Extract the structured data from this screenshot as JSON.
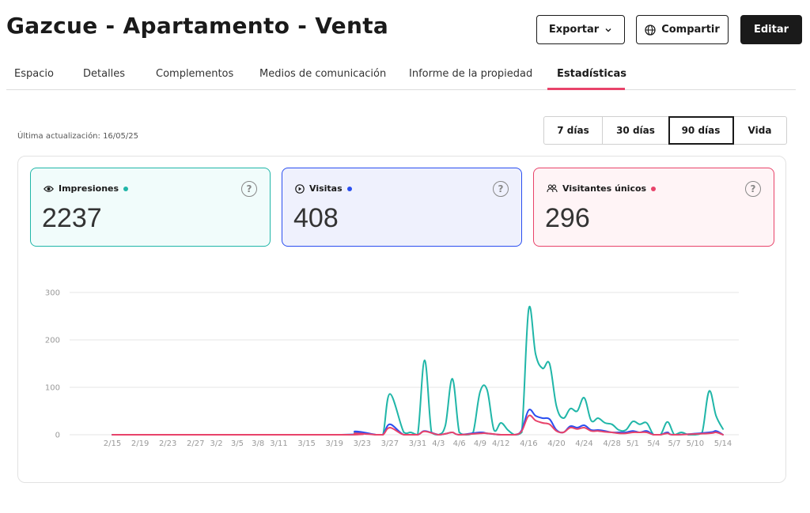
{
  "header": {
    "title": "Gazcue - Apartamento - Venta",
    "menu_icon": "more-vertical-icon",
    "export_label": "Exportar",
    "share_label": "Compartir",
    "edit_label": "Editar"
  },
  "tabs": [
    {
      "label": "Espacio",
      "active": false
    },
    {
      "label": "Detalles",
      "active": false
    },
    {
      "label": "Complementos",
      "active": false
    },
    {
      "label": "Medios de comunicación",
      "active": false
    },
    {
      "label": "Informe de la propiedad",
      "active": false
    },
    {
      "label": "Estadísticas",
      "active": true
    }
  ],
  "last_update": "Última actualización: 16/05/25",
  "range": {
    "options": [
      "7 días",
      "30 días",
      "90 días",
      "Vida"
    ],
    "selected": "90 días"
  },
  "cards": [
    {
      "label": "Impresiones",
      "value": "2237",
      "icon": "eye-icon",
      "color": "#20b6a8"
    },
    {
      "label": "Visitas",
      "value": "408",
      "icon": "play-circle-icon",
      "color": "#2a4ef0"
    },
    {
      "label": "Visitantes únicos",
      "value": "296",
      "icon": "users-icon",
      "color": "#e8436a"
    }
  ],
  "colors": {
    "accent": "#e8436a",
    "impresiones": "#20b6a8",
    "visitas": "#2a4ef0",
    "unicos": "#e8436a"
  },
  "chart_data": {
    "type": "line",
    "ylim": [
      0,
      300
    ],
    "yticks": [
      0,
      100,
      200,
      300
    ],
    "grid": true,
    "legend": "none",
    "x_ticks": [
      "2/15",
      "2/19",
      "2/23",
      "2/27",
      "3/2",
      "3/5",
      "3/8",
      "3/11",
      "3/15",
      "3/19",
      "3/23",
      "3/27",
      "3/31",
      "4/3",
      "4/6",
      "4/9",
      "4/12",
      "4/16",
      "4/20",
      "4/24",
      "4/28",
      "5/1",
      "5/4",
      "5/7",
      "5/10",
      "5/14"
    ],
    "series": [
      {
        "key": "impresiones",
        "color": "#20b6a8",
        "points": [
          [
            "2/15",
            0
          ],
          [
            "3/20",
            0
          ],
          [
            "3/22",
            5
          ],
          [
            "3/25",
            0
          ],
          [
            "3/26",
            0
          ],
          [
            "3/27",
            86
          ],
          [
            "3/29",
            5
          ],
          [
            "3/30",
            5
          ],
          [
            "3/31",
            0
          ],
          [
            "4/1",
            157
          ],
          [
            "4/2",
            5
          ],
          [
            "4/3",
            0
          ],
          [
            "4/4",
            20
          ],
          [
            "4/5",
            118
          ],
          [
            "4/6",
            5
          ],
          [
            "4/7",
            0
          ],
          [
            "4/8",
            5
          ],
          [
            "4/9",
            91
          ],
          [
            "4/10",
            95
          ],
          [
            "4/11",
            10
          ],
          [
            "4/12",
            25
          ],
          [
            "4/13",
            10
          ],
          [
            "4/14",
            0
          ],
          [
            "4/15",
            5
          ],
          [
            "4/16",
            265
          ],
          [
            "4/17",
            170
          ],
          [
            "4/18",
            140
          ],
          [
            "4/19",
            150
          ],
          [
            "4/20",
            60
          ],
          [
            "4/21",
            35
          ],
          [
            "4/22",
            55
          ],
          [
            "4/23",
            50
          ],
          [
            "4/24",
            78
          ],
          [
            "4/25",
            30
          ],
          [
            "4/26",
            35
          ],
          [
            "4/27",
            25
          ],
          [
            "4/28",
            22
          ],
          [
            "4/29",
            10
          ],
          [
            "4/30",
            10
          ],
          [
            "5/1",
            28
          ],
          [
            "5/2",
            22
          ],
          [
            "5/3",
            25
          ],
          [
            "5/4",
            0
          ],
          [
            "5/5",
            0
          ],
          [
            "5/6",
            27
          ],
          [
            "5/7",
            0
          ],
          [
            "5/8",
            5
          ],
          [
            "5/9",
            0
          ],
          [
            "5/10",
            0
          ],
          [
            "5/11",
            5
          ],
          [
            "5/12",
            92
          ],
          [
            "5/13",
            40
          ],
          [
            "5/14",
            12
          ]
        ]
      },
      {
        "key": "visitas",
        "color": "#2a4ef0",
        "points": [
          [
            "2/15",
            0
          ],
          [
            "3/20",
            0
          ],
          [
            "3/22",
            7
          ],
          [
            "3/25",
            0
          ],
          [
            "3/26",
            0
          ],
          [
            "3/27",
            22
          ],
          [
            "3/29",
            0
          ],
          [
            "3/31",
            0
          ],
          [
            "4/1",
            8
          ],
          [
            "4/3",
            0
          ],
          [
            "4/4",
            2
          ],
          [
            "4/5",
            5
          ],
          [
            "4/6",
            0
          ],
          [
            "4/9",
            5
          ],
          [
            "4/10",
            3
          ],
          [
            "4/12",
            0
          ],
          [
            "4/14",
            0
          ],
          [
            "4/15",
            10
          ],
          [
            "4/16",
            52
          ],
          [
            "4/17",
            40
          ],
          [
            "4/18",
            35
          ],
          [
            "4/19",
            33
          ],
          [
            "4/20",
            10
          ],
          [
            "4/21",
            5
          ],
          [
            "4/22",
            18
          ],
          [
            "4/23",
            15
          ],
          [
            "4/24",
            20
          ],
          [
            "4/25",
            10
          ],
          [
            "4/26",
            10
          ],
          [
            "4/27",
            8
          ],
          [
            "4/28",
            5
          ],
          [
            "4/29",
            5
          ],
          [
            "4/30",
            5
          ],
          [
            "5/1",
            8
          ],
          [
            "5/2",
            5
          ],
          [
            "5/3",
            8
          ],
          [
            "5/4",
            0
          ],
          [
            "5/5",
            0
          ],
          [
            "5/6",
            5
          ],
          [
            "5/7",
            0
          ],
          [
            "5/12",
            5
          ],
          [
            "5/13",
            8
          ],
          [
            "5/14",
            0
          ]
        ]
      },
      {
        "key": "unicos",
        "color": "#e8436a",
        "points": [
          [
            "2/15",
            0
          ],
          [
            "3/20",
            0
          ],
          [
            "3/22",
            3
          ],
          [
            "3/25",
            0
          ],
          [
            "3/26",
            0
          ],
          [
            "3/27",
            15
          ],
          [
            "3/29",
            0
          ],
          [
            "3/31",
            0
          ],
          [
            "4/1",
            7
          ],
          [
            "4/3",
            0
          ],
          [
            "4/4",
            2
          ],
          [
            "4/5",
            5
          ],
          [
            "4/6",
            0
          ],
          [
            "4/9",
            3
          ],
          [
            "4/10",
            3
          ],
          [
            "4/12",
            0
          ],
          [
            "4/14",
            0
          ],
          [
            "4/15",
            8
          ],
          [
            "4/16",
            40
          ],
          [
            "4/17",
            30
          ],
          [
            "4/18",
            25
          ],
          [
            "4/19",
            22
          ],
          [
            "4/20",
            8
          ],
          [
            "4/21",
            5
          ],
          [
            "4/22",
            15
          ],
          [
            "4/23",
            12
          ],
          [
            "4/24",
            15
          ],
          [
            "4/25",
            8
          ],
          [
            "4/26",
            8
          ],
          [
            "4/27",
            6
          ],
          [
            "4/28",
            5
          ],
          [
            "4/29",
            3
          ],
          [
            "4/30",
            3
          ],
          [
            "5/1",
            5
          ],
          [
            "5/2",
            5
          ],
          [
            "5/3",
            5
          ],
          [
            "5/4",
            0
          ],
          [
            "5/5",
            0
          ],
          [
            "5/6",
            3
          ],
          [
            "5/7",
            0
          ],
          [
            "5/12",
            3
          ],
          [
            "5/13",
            5
          ],
          [
            "5/14",
            0
          ]
        ]
      }
    ]
  }
}
